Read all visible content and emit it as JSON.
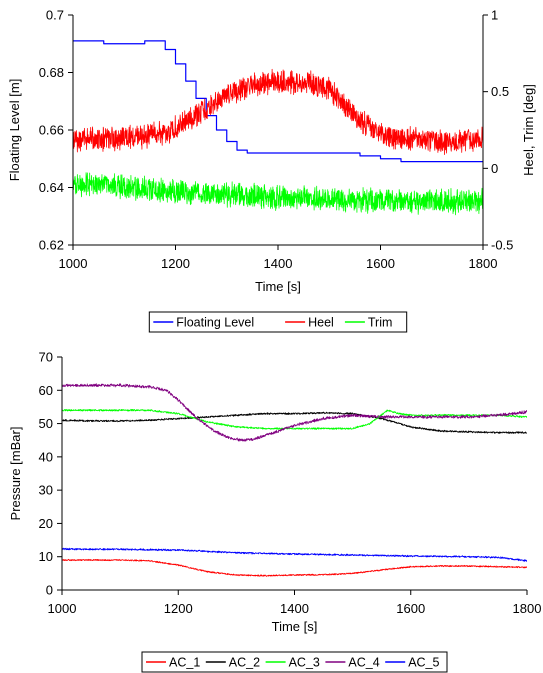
{
  "chart_data": [
    {
      "type": "line",
      "xlabel": "Time [s]",
      "ylabel": "Floating Level [m]",
      "y2label": "Heel, Trim [deg]",
      "xlim": [
        1000,
        1800
      ],
      "ylim": [
        0.62,
        0.7
      ],
      "y2lim": [
        -0.5,
        1.0
      ],
      "x_ticks": [
        1000,
        1200,
        1400,
        1600,
        1800
      ],
      "x_tick_labels": [
        "1000",
        "1200",
        "1400",
        "1600",
        "1800"
      ],
      "y_ticks": [
        0.62,
        0.64,
        0.66,
        0.68,
        0.7
      ],
      "y_tick_labels": [
        "0.62",
        "0.64",
        "0.66",
        "0.68",
        "0.7"
      ],
      "y2_ticks": [
        -0.5,
        0,
        0.5,
        1
      ],
      "y2_tick_labels": [
        "-0.5",
        "0",
        "0.5",
        "1"
      ],
      "grid": false,
      "legend_position": "bottom",
      "series": [
        {
          "name": "Floating Level",
          "axis": "left",
          "color": "#0000ff",
          "noise": 0,
          "x": [
            1000,
            1020,
            1040,
            1060,
            1080,
            1100,
            1120,
            1140,
            1160,
            1180,
            1200,
            1220,
            1240,
            1260,
            1280,
            1300,
            1320,
            1340,
            1360,
            1380,
            1400,
            1420,
            1440,
            1460,
            1480,
            1500,
            1520,
            1540,
            1560,
            1580,
            1600,
            1620,
            1640,
            1660,
            1680,
            1700,
            1720,
            1740,
            1760,
            1780,
            1800
          ],
          "y": [
            0.691,
            0.691,
            0.691,
            0.69,
            0.69,
            0.69,
            0.69,
            0.691,
            0.691,
            0.688,
            0.683,
            0.677,
            0.671,
            0.665,
            0.66,
            0.656,
            0.653,
            0.652,
            0.652,
            0.652,
            0.652,
            0.652,
            0.652,
            0.652,
            0.652,
            0.652,
            0.652,
            0.652,
            0.651,
            0.651,
            0.65,
            0.65,
            0.649,
            0.649,
            0.649,
            0.649,
            0.649,
            0.649,
            0.649,
            0.649,
            0.649
          ]
        },
        {
          "name": "Heel",
          "axis": "right",
          "color": "#ff0000",
          "noise": 0.09,
          "x": [
            1000,
            1050,
            1100,
            1150,
            1200,
            1250,
            1300,
            1350,
            1400,
            1450,
            1500,
            1550,
            1600,
            1650,
            1700,
            1750,
            1800
          ],
          "y": [
            0.18,
            0.19,
            0.2,
            0.21,
            0.26,
            0.36,
            0.48,
            0.55,
            0.56,
            0.56,
            0.52,
            0.34,
            0.22,
            0.19,
            0.18,
            0.17,
            0.19
          ]
        },
        {
          "name": "Trim",
          "axis": "right",
          "color": "#00ff00",
          "noise": 0.09,
          "x": [
            1000,
            1100,
            1200,
            1300,
            1400,
            1500,
            1600,
            1700,
            1800
          ],
          "y": [
            -0.1,
            -0.12,
            -0.15,
            -0.17,
            -0.19,
            -0.2,
            -0.21,
            -0.22,
            -0.21
          ]
        }
      ]
    },
    {
      "type": "line",
      "xlabel": "Time [s]",
      "ylabel": "Pressure [mBar]",
      "xlim": [
        1000,
        1800
      ],
      "ylim": [
        0,
        70
      ],
      "x_ticks": [
        1000,
        1200,
        1400,
        1600,
        1800
      ],
      "x_tick_labels": [
        "1000",
        "1200",
        "1400",
        "1600",
        "1800"
      ],
      "y_ticks": [
        0,
        10,
        20,
        30,
        40,
        50,
        60,
        70
      ],
      "y_tick_labels": [
        "0",
        "10",
        "20",
        "30",
        "40",
        "50",
        "60",
        "70"
      ],
      "grid": false,
      "legend_position": "bottom",
      "series": [
        {
          "name": "AC_1",
          "color": "#ff0000",
          "noise": 0.25,
          "x": [
            1000,
            1050,
            1100,
            1150,
            1200,
            1250,
            1300,
            1350,
            1400,
            1450,
            1500,
            1550,
            1600,
            1650,
            1700,
            1750,
            1800
          ],
          "y": [
            9,
            9,
            9,
            8.8,
            7.5,
            5.5,
            4.5,
            4.3,
            4.5,
            4.6,
            5,
            6,
            7,
            7.2,
            7.2,
            7,
            6.8
          ]
        },
        {
          "name": "AC_2",
          "color": "#000000",
          "noise": 0.3,
          "x": [
            1000,
            1050,
            1100,
            1150,
            1200,
            1250,
            1300,
            1350,
            1400,
            1450,
            1500,
            1550,
            1600,
            1650,
            1700,
            1750,
            1800
          ],
          "y": [
            51,
            50.8,
            50.8,
            51,
            51.5,
            52,
            52.5,
            53,
            53,
            53.2,
            53,
            51.5,
            49,
            47.8,
            47.5,
            47.3,
            47.3
          ]
        },
        {
          "name": "AC_3",
          "color": "#00ff00",
          "noise": 0.3,
          "x": [
            1000,
            1050,
            1100,
            1150,
            1200,
            1250,
            1300,
            1350,
            1400,
            1450,
            1500,
            1530,
            1560,
            1580,
            1600,
            1650,
            1700,
            1750,
            1800
          ],
          "y": [
            54,
            54,
            54,
            54,
            53,
            50.5,
            49,
            48.5,
            48.5,
            48.5,
            48.5,
            50,
            54,
            53,
            52.5,
            52.5,
            52.5,
            52.5,
            52
          ]
        },
        {
          "name": "AC_4",
          "color": "#800080",
          "noise": 0.5,
          "x": [
            1000,
            1050,
            1100,
            1150,
            1180,
            1200,
            1230,
            1260,
            1290,
            1310,
            1330,
            1360,
            1400,
            1450,
            1500,
            1550,
            1600,
            1650,
            1700,
            1750,
            1800
          ],
          "y": [
            61.5,
            61.5,
            61.5,
            61,
            60,
            57,
            52,
            48,
            45.5,
            45,
            45.3,
            47,
            49.5,
            51.5,
            52.5,
            52,
            52,
            52,
            52,
            52.5,
            53.5
          ]
        },
        {
          "name": "AC_5",
          "color": "#0000ff",
          "noise": 0.3,
          "x": [
            1000,
            1100,
            1200,
            1300,
            1400,
            1500,
            1600,
            1700,
            1750,
            1800
          ],
          "y": [
            12.3,
            12.2,
            12,
            11.2,
            10.8,
            10.5,
            10.2,
            10,
            9.8,
            8.8
          ]
        }
      ]
    }
  ]
}
